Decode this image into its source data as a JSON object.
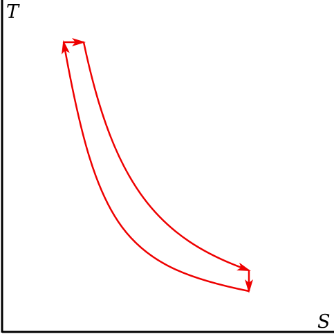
{
  "diagram": {
    "y_axis_label": "T",
    "x_axis_label": "S",
    "colors": {
      "axis": "#000000",
      "cycle": "#ee0000",
      "background": "#ffffff"
    },
    "cycle_direction": "clockwise"
  }
}
